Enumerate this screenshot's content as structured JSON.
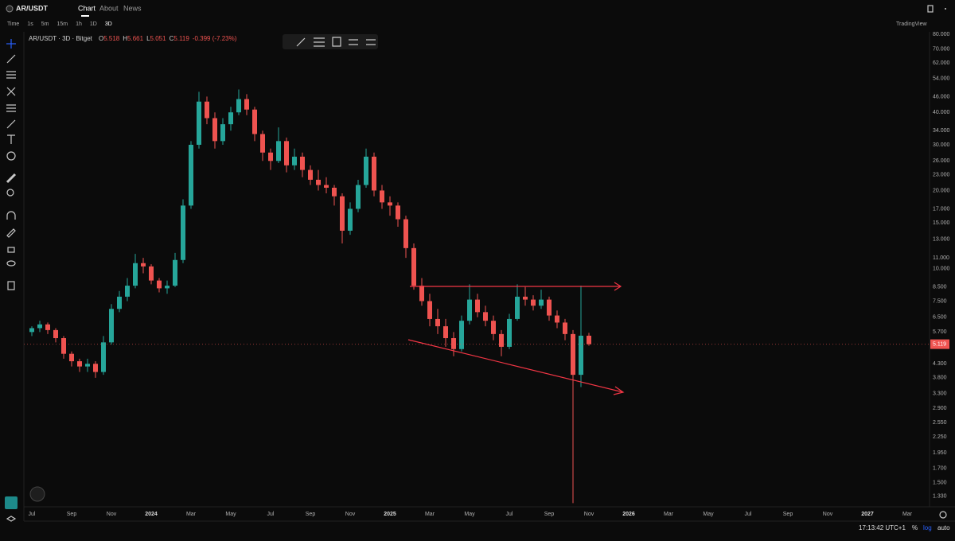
{
  "header": {
    "symbol": "AR/USDT",
    "tabs": [
      "Chart",
      "About",
      "News"
    ]
  },
  "toolbar": {
    "intervals": [
      "Time",
      "1s",
      "5m",
      "15m",
      "1h",
      "1D",
      "3D"
    ],
    "brand": "TradingView"
  },
  "legend": {
    "title": "AR/USDT · 3D · Bitget",
    "ohlc_labels": [
      "O",
      "H",
      "L",
      "C"
    ],
    "change": "-0.399 (-7.23%)"
  },
  "status": {
    "clock": "17:13:42 UTC+1",
    "percent": "%",
    "log": "log",
    "auto": "auto"
  },
  "chart_data": {
    "type": "candlestick",
    "log_scale": true,
    "grid": false,
    "up_color": "#26a69a",
    "down_color": "#ef5350",
    "categories": [
      "Jul",
      null,
      null,
      null,
      null,
      "Sep",
      null,
      null,
      null,
      null,
      "Nov",
      null,
      null,
      null,
      null,
      "2024",
      null,
      null,
      null,
      null,
      "Mar",
      null,
      null,
      null,
      null,
      "May",
      null,
      null,
      null,
      null,
      "Jul",
      null,
      null,
      null,
      null,
      "Sep",
      null,
      null,
      null,
      null,
      "Nov",
      null,
      null,
      null,
      null,
      "2025",
      null,
      null,
      null,
      null,
      "Mar",
      null,
      null,
      null,
      null,
      "May",
      null,
      null,
      null,
      null,
      "Jul",
      null,
      null,
      null,
      null,
      "Sep",
      null,
      null,
      null,
      null,
      "Nov",
      null,
      null,
      null,
      null,
      "2026",
      null,
      null,
      null,
      null,
      "Mar",
      null,
      null,
      null,
      null,
      "May",
      null,
      null,
      null,
      null,
      "Jul",
      null,
      null,
      null,
      null,
      "Sep",
      null,
      null,
      null,
      null,
      "Nov",
      null,
      null,
      null,
      null,
      "2027",
      null,
      null,
      null,
      null,
      "Mar",
      null,
      null
    ],
    "open": [
      5.7,
      5.9,
      6.1,
      5.8,
      5.4,
      4.7,
      4.4,
      4.2,
      4.3,
      4.0,
      5.2,
      7.0,
      7.8,
      8.6,
      10.5,
      10.2,
      9.0,
      8.4,
      8.6,
      10.8,
      17.5,
      30,
      44,
      38,
      31,
      36,
      40,
      45,
      41,
      33,
      28,
      26,
      31,
      25,
      27,
      24,
      22,
      21,
      20.5,
      19,
      14,
      17,
      21,
      27,
      20,
      18,
      17.5,
      15.5,
      12,
      8.6,
      7.5,
      6.4,
      6.0,
      5.4,
      4.9,
      6.3,
      7.6,
      6.8,
      6.3,
      5.6,
      5.0,
      6.4,
      7.8,
      7.6,
      7.2,
      7.6,
      6.6,
      6.2,
      5.6,
      3.9,
      5.518,
      null,
      null,
      null,
      null,
      null,
      null,
      null,
      null,
      null,
      null,
      null,
      null,
      null,
      null,
      null,
      null,
      null,
      null,
      null,
      null,
      null,
      null,
      null,
      null,
      null,
      null,
      null,
      null,
      null,
      null,
      null,
      null,
      null,
      null,
      null,
      null,
      null,
      null,
      null,
      null,
      null,
      null
    ],
    "high": [
      6.0,
      6.3,
      6.2,
      5.9,
      5.5,
      4.8,
      4.5,
      4.5,
      4.4,
      5.5,
      7.3,
      8.2,
      9.2,
      11.4,
      11.0,
      10.4,
      9.2,
      9.0,
      11.5,
      18.5,
      31,
      48,
      46,
      40,
      38,
      42,
      49,
      47,
      42,
      34,
      29,
      35,
      32,
      29,
      28,
      25,
      24,
      22.5,
      21,
      19.5,
      18,
      22,
      29,
      28,
      21,
      19,
      18,
      16,
      12.5,
      9.2,
      8,
      7,
      6.4,
      5.7,
      6.6,
      8.7,
      8.0,
      7.2,
      6.6,
      5.8,
      6.7,
      8.7,
      8.5,
      7.9,
      8.3,
      7.8,
      6.9,
      6.4,
      5.8,
      8.6,
      5.661,
      null,
      null,
      null,
      null,
      null,
      null,
      null,
      null,
      null,
      null,
      null,
      null,
      null,
      null,
      null,
      null,
      null,
      null,
      null,
      null,
      null,
      null,
      null,
      null,
      null,
      null,
      null,
      null,
      null,
      null,
      null,
      null,
      null,
      null,
      null,
      null,
      null,
      null,
      null,
      null,
      null,
      null
    ],
    "low": [
      5.5,
      5.7,
      5.6,
      5.2,
      4.5,
      4.2,
      4.0,
      4.0,
      3.8,
      3.9,
      5.1,
      6.8,
      7.5,
      8.4,
      9.6,
      8.7,
      8.1,
      8.0,
      8.5,
      10.5,
      17,
      29,
      36,
      29,
      30,
      34,
      39,
      39,
      31,
      26,
      24,
      25.5,
      23.5,
      24,
      22.5,
      21,
      20,
      19.5,
      17.5,
      12.5,
      13.5,
      16.5,
      20.5,
      19,
      17,
      16,
      14.5,
      11,
      8.3,
      7.2,
      6,
      5.6,
      5.0,
      4.6,
      4.8,
      6.1,
      6.5,
      6.0,
      5.3,
      4.6,
      4.9,
      6.3,
      7.2,
      6.9,
      7.0,
      6.3,
      5.9,
      5.3,
      1.25,
      3.5,
      5.051,
      null,
      null,
      null,
      null,
      null,
      null,
      null,
      null,
      null,
      null,
      null,
      null,
      null,
      null,
      null,
      null,
      null,
      null,
      null,
      null,
      null,
      null,
      null,
      null,
      null,
      null,
      null,
      null,
      null,
      null,
      null,
      null,
      null,
      null,
      null,
      null,
      null,
      null,
      null,
      null,
      null,
      null
    ],
    "close": [
      5.9,
      6.1,
      5.8,
      5.4,
      4.7,
      4.4,
      4.2,
      4.3,
      4.0,
      5.2,
      7.0,
      7.8,
      8.6,
      10.5,
      10.2,
      9.0,
      8.4,
      8.6,
      10.8,
      17.5,
      30,
      44,
      38,
      31,
      36,
      40,
      45,
      41,
      33,
      28,
      26,
      31,
      25,
      27,
      24,
      22,
      21,
      20.5,
      19,
      14,
      17,
      21,
      27,
      20,
      18,
      17.5,
      15.5,
      12,
      8.6,
      7.5,
      6.4,
      6.0,
      5.4,
      4.9,
      6.3,
      7.6,
      6.8,
      6.3,
      5.6,
      5.0,
      6.4,
      7.8,
      7.6,
      7.2,
      7.6,
      6.6,
      6.2,
      5.6,
      3.9,
      5.518,
      5.119,
      null,
      null,
      null,
      null,
      null,
      null,
      null,
      null,
      null,
      null,
      null,
      null,
      null,
      null,
      null,
      null,
      null,
      null,
      null,
      null,
      null,
      null,
      null,
      null,
      null,
      null,
      null,
      null,
      null,
      null,
      null,
      null,
      null,
      null,
      null,
      null,
      null,
      null,
      null,
      null,
      null,
      null
    ],
    "ylim": [
      1.21,
      81.7
    ],
    "yticks": [
      {
        "value": 80,
        "label": "80.000"
      },
      {
        "value": 70,
        "label": "70.000"
      },
      {
        "value": 62,
        "label": "62.000"
      },
      {
        "value": 54,
        "label": "54.000"
      },
      {
        "value": 46,
        "label": "46.000"
      },
      {
        "value": 40,
        "label": "40.000"
      },
      {
        "value": 34,
        "label": "34.000"
      },
      {
        "value": 30,
        "label": "30.000"
      },
      {
        "value": 26,
        "label": "26.000"
      },
      {
        "value": 23,
        "label": "23.000"
      },
      {
        "value": 20,
        "label": "20.000"
      },
      {
        "value": 17,
        "label": "17.000"
      },
      {
        "value": 15,
        "label": "15.000"
      },
      {
        "value": 13,
        "label": "13.000"
      },
      {
        "value": 11,
        "label": "11.000"
      },
      {
        "value": 10,
        "label": "10.000"
      },
      {
        "value": 8.5,
        "label": "8.500"
      },
      {
        "value": 7.5,
        "label": "7.500"
      },
      {
        "value": 6.5,
        "label": "6.500"
      },
      {
        "value": 5.7,
        "label": "5.700"
      },
      {
        "value": 4.3,
        "label": "4.300"
      },
      {
        "value": 3.8,
        "label": "3.800"
      },
      {
        "value": 3.3,
        "label": "3.300"
      },
      {
        "value": 2.9,
        "label": "2.900"
      },
      {
        "value": 2.55,
        "label": "2.550"
      },
      {
        "value": 2.25,
        "label": "2.250"
      },
      {
        "value": 1.95,
        "label": "1.950"
      },
      {
        "value": 1.7,
        "label": "1.700"
      },
      {
        "value": 1.5,
        "label": "1.500"
      },
      {
        "value": 1.33,
        "label": "1.330"
      }
    ]
  }
}
